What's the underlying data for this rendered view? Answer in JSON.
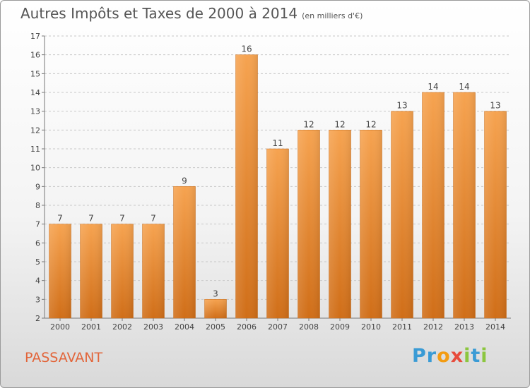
{
  "title": "Autres Impôts et Taxes de 2000 à 2014",
  "unit_note": "(en milliers d'€)",
  "commune": "PASSAVANT",
  "brand": {
    "letters": [
      "P",
      "r",
      "o",
      "x",
      "i",
      "t",
      "i"
    ],
    "colors": [
      "#3a9bd5",
      "#3a9bd5",
      "#f39c12",
      "#e74c3c",
      "#8cc63f",
      "#3a9bd5",
      "#8cc63f"
    ]
  },
  "colors": {
    "bar_top": "#f6a350",
    "bar_bottom": "#d06e18",
    "grid": "#c8c8c8",
    "text": "#444444",
    "commune": "#e2653a"
  },
  "chart_data": {
    "type": "bar",
    "categories": [
      "2000",
      "2001",
      "2002",
      "2003",
      "2004",
      "2005",
      "2006",
      "2007",
      "2008",
      "2009",
      "2010",
      "2011",
      "2012",
      "2013",
      "2014"
    ],
    "values": [
      7,
      7,
      7,
      7,
      9,
      3,
      16,
      11,
      12,
      12,
      12,
      13,
      14,
      14,
      13
    ],
    "ylim": [
      2,
      17
    ],
    "yticks": [
      2,
      3,
      4,
      5,
      6,
      7,
      8,
      9,
      10,
      11,
      12,
      13,
      14,
      15,
      16,
      17
    ],
    "grid": true,
    "data_labels": true
  }
}
